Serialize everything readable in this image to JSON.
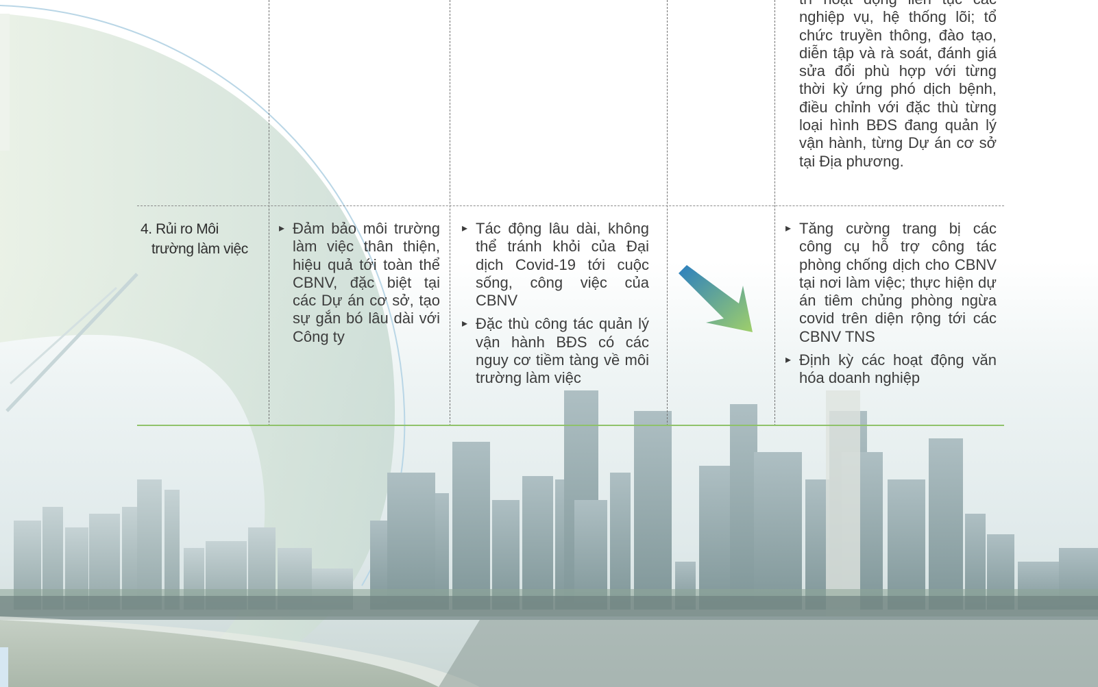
{
  "top_cell": {
    "text": "trì hoạt động liên tục các nghiệp vụ, hệ thống lõi; tổ chức truyền thông, đào tạo, diễn tập và rà soát, đánh giá sửa đổi phù hợp với từng thời kỳ ứng phó dịch bệnh, điều chỉnh với đặc thù từng loại hình BĐS đang quản lý vận hành, từng Dự án cơ sở tại Địa phương."
  },
  "risk_row": {
    "title_line1": "4. Rủi ro Môi",
    "title_line2": "trường làm việc",
    "objective": [
      "Đảm bảo môi trường làm việc thân thiện, hiệu quả tới toàn thể CBNV, đặc biệt tại các Dự án cơ sở, tạo sự gắn bó lâu dài với Công ty"
    ],
    "impact": [
      "Tác động lâu dài, không thể tránh khỏi của Đại dịch Covid-19 tới cuộc sống, công việc của CBNV",
      "Đặc thù công tác quản lý vận hành BĐS có các nguy cơ tiềm tàng về môi trường làm việc"
    ],
    "measures": [
      "Tăng cường trang bị các công cụ hỗ trợ công tác phòng chống dịch cho CBNV tại nơi làm việc; thực hiện dự án tiêm chủng phòng ngừa covid trên diện rộng tới các CBNV TNS",
      "Định kỳ các hoạt động văn hóa doanh nghiệp"
    ]
  },
  "colors": {
    "accent_green": "#8fc26a",
    "arrow_start": "#2b7fc0",
    "arrow_end": "#9fcf6a",
    "text": "#3c3c3c"
  },
  "icons": {
    "trend_arrow": "diagonal-down-right-arrow-icon"
  }
}
